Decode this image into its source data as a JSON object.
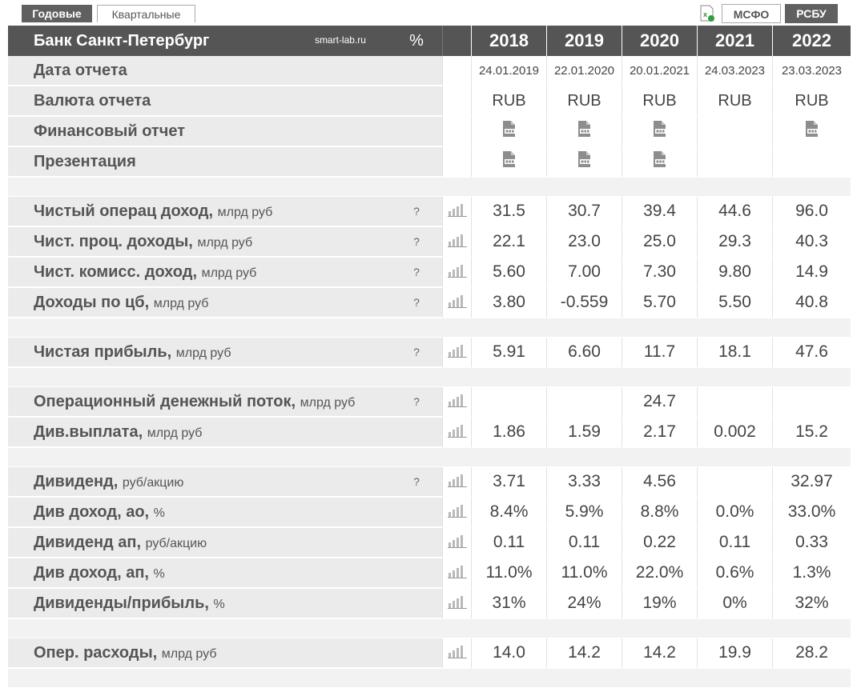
{
  "tabs": {
    "annual": "Годовые",
    "quarterly": "Квартальные"
  },
  "standards": {
    "ifrs": "МСФО",
    "ras": "РСБУ"
  },
  "header": {
    "company": "Банк Санкт-Петербург",
    "source": "smart-lab.ru",
    "percent": "%",
    "years": [
      "2018",
      "2019",
      "2020",
      "2021",
      "2022"
    ]
  },
  "meta": {
    "report_date": {
      "label": "Дата отчета",
      "values": [
        "24.01.2019",
        "22.01.2020",
        "20.01.2021",
        "24.03.2023",
        "23.03.2023"
      ]
    },
    "currency": {
      "label": "Валюта отчета",
      "values": [
        "RUB",
        "RUB",
        "RUB",
        "RUB",
        "RUB"
      ]
    },
    "fin_report": {
      "label": "Финансовый отчет",
      "has_pdf": [
        true,
        true,
        true,
        false,
        true
      ]
    },
    "presentation": {
      "label": "Презентация",
      "has_pdf": [
        true,
        true,
        true,
        false,
        false
      ]
    }
  },
  "metrics": {
    "net_op_income": {
      "label": "Чистый операц доход,",
      "unit": "млрд руб",
      "help": "?",
      "values": [
        "31.5",
        "30.7",
        "39.4",
        "44.6",
        "96.0"
      ]
    },
    "net_interest": {
      "label": "Чист. проц. доходы,",
      "unit": "млрд руб",
      "help": "?",
      "values": [
        "22.1",
        "23.0",
        "25.0",
        "29.3",
        "40.3"
      ]
    },
    "net_commission": {
      "label": "Чист. комисс. доход,",
      "unit": "млрд руб",
      "help": "?",
      "values": [
        "5.60",
        "7.00",
        "7.30",
        "9.80",
        "14.9"
      ]
    },
    "securities_income": {
      "label": "Доходы по цб,",
      "unit": "млрд руб",
      "help": "?",
      "values": [
        "3.80",
        "-0.559",
        "5.70",
        "5.50",
        "40.8"
      ]
    },
    "net_profit": {
      "label": "Чистая прибыль,",
      "unit": "млрд руб",
      "help": "?",
      "values": [
        "5.91",
        "6.60",
        "11.7",
        "18.1",
        "47.6"
      ]
    },
    "op_cash_flow": {
      "label": "Операционный денежный поток,",
      "unit": "млрд руб",
      "help": "?",
      "values": [
        "",
        "",
        "24.7",
        "",
        ""
      ]
    },
    "div_payout": {
      "label": "Див.выплата,",
      "unit": "млрд руб",
      "help": "",
      "values": [
        "1.86",
        "1.59",
        "2.17",
        "0.002",
        "15.2"
      ]
    },
    "dividend": {
      "label": "Дивиденд,",
      "unit": "руб/акцию",
      "help": "?",
      "values": [
        "3.71",
        "3.33",
        "4.56",
        "",
        "32.97"
      ]
    },
    "div_yield_ord": {
      "label": "Див доход, ао,",
      "unit": "%",
      "help": "",
      "values": [
        "8.4%",
        "5.9%",
        "8.8%",
        "0.0%",
        "33.0%"
      ]
    },
    "dividend_pref": {
      "label": "Дивиденд ап,",
      "unit": "руб/акцию",
      "help": "",
      "values": [
        "0.11",
        "0.11",
        "0.22",
        "0.11",
        "0.33"
      ]
    },
    "div_yield_pref": {
      "label": "Див доход, ап,",
      "unit": "%",
      "help": "",
      "values": [
        "11.0%",
        "11.0%",
        "22.0%",
        "0.6%",
        "1.3%"
      ]
    },
    "payout_ratio": {
      "label": "Дивиденды/прибыль,",
      "unit": "%",
      "help": "",
      "values": [
        "31%",
        "24%",
        "19%",
        "0%",
        "32%"
      ]
    },
    "opex": {
      "label": "Опер. расходы,",
      "unit": "млрд руб",
      "help": "",
      "values": [
        "14.0",
        "14.2",
        "14.2",
        "19.9",
        "28.2"
      ]
    }
  },
  "icons": {
    "chart": "bar-chart-icon",
    "pdf": "pdf-icon",
    "excel": "excel-icon"
  },
  "colors": {
    "header_bg": "#555555",
    "label_bg": "#ebebeb",
    "tab_dark": "#606060"
  }
}
